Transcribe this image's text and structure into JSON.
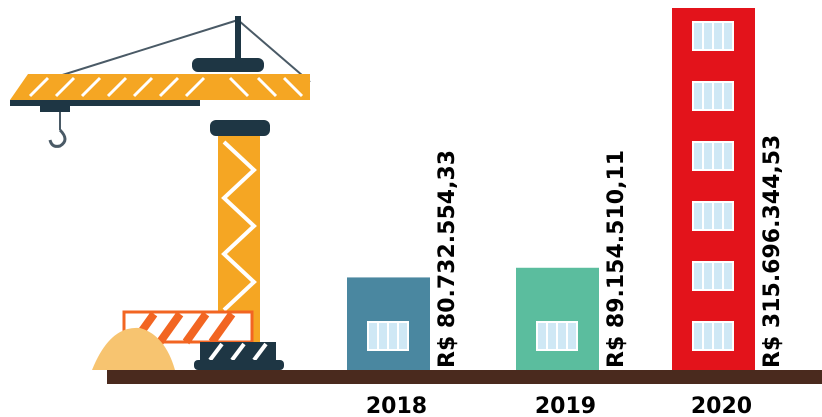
{
  "chart_data": {
    "type": "bar",
    "categories": [
      "2018",
      "2019",
      "2020"
    ],
    "values": [
      80732554.33,
      89154510.11,
      315696344.53
    ],
    "value_labels": [
      "R$ 80.732.554,33",
      "R$ 89.154.510,11",
      "R$ 315.696.344,53"
    ],
    "colors": [
      "#4a87a0",
      "#5bbd9e",
      "#e3131b"
    ]
  }
}
